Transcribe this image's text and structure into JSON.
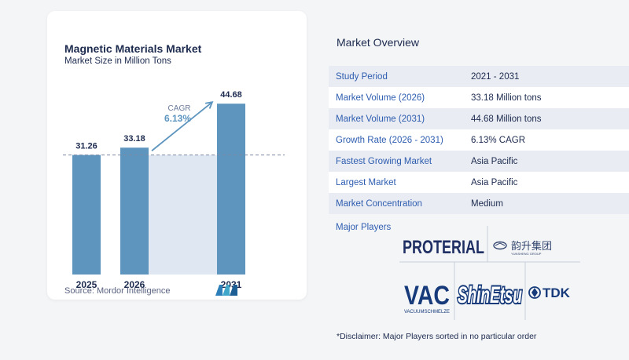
{
  "chart_data": {
    "type": "bar",
    "title": "Magnetic Materials Market",
    "subtitle": "Market Size in Million Tons",
    "categories": [
      "2025",
      "2026",
      "2031"
    ],
    "values": [
      31.26,
      33.18,
      44.68
    ],
    "value_labels": [
      "31.26",
      "33.18",
      "44.68"
    ],
    "annotation": {
      "label": "CAGR",
      "value": "6.13%"
    },
    "colors": {
      "bar": "#5d95bf",
      "band": "#dfe8f2",
      "dashed_line": "#7d8aa3",
      "arrow": "#5d95bf"
    },
    "xlabel": "",
    "ylabel": "",
    "ylim": [
      0,
      48
    ]
  },
  "source": "Source:  Mordor Intelligence",
  "overview": {
    "title": "Market Overview",
    "rows": [
      {
        "key": "Study Period",
        "value": "2021 - 2031"
      },
      {
        "key": "Market Volume (2026)",
        "value": "33.18 Million tons"
      },
      {
        "key": "Market Volume (2031)",
        "value": "44.68 Million tons"
      },
      {
        "key": "Growth Rate (2026 - 2031)",
        "value": "6.13% CAGR"
      },
      {
        "key": "Fastest Growing Market",
        "value": "Asia Pacific"
      },
      {
        "key": "Largest Market",
        "value": "Asia Pacific"
      },
      {
        "key": "Market Concentration",
        "value": "Medium"
      }
    ]
  },
  "major_players": {
    "label": "Major Players",
    "logos": [
      "PROTERIAL",
      "韵升集团",
      "YUNSHENG GROUP",
      "VAC",
      "VACUUMSCHMELZE",
      "ShinEtsu",
      "TDK"
    ]
  },
  "disclaimer": "*Disclaimer: Major Players sorted in no particular order"
}
